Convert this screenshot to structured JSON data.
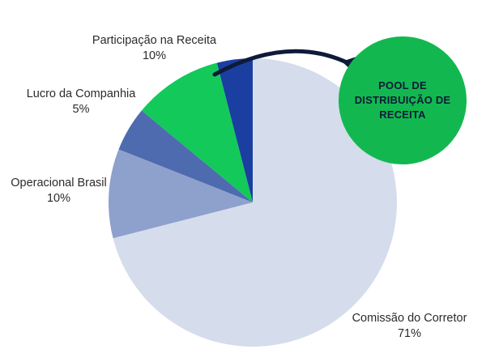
{
  "chart_data": {
    "type": "pie",
    "categories": [
      "Participação na Receita",
      "Lucro da Companhia",
      "Operacional Brasil",
      "Comissão do Corretor"
    ],
    "values": [
      10,
      5,
      10,
      71
    ],
    "pct_labels": [
      "10%",
      "5%",
      "10%",
      "71%"
    ],
    "colors": [
      "#13c95a",
      "#4e6bb0",
      "#8ea0cc",
      "#d5dcec"
    ],
    "highlight_slice": {
      "value": 4,
      "color": "#1a3fa0"
    }
  },
  "callout": {
    "text": "POOL DE DISTRIBUIÇÃO DE RECEITA",
    "circle_color": "#12b84f",
    "arrow_color": "#0f1a3a"
  }
}
